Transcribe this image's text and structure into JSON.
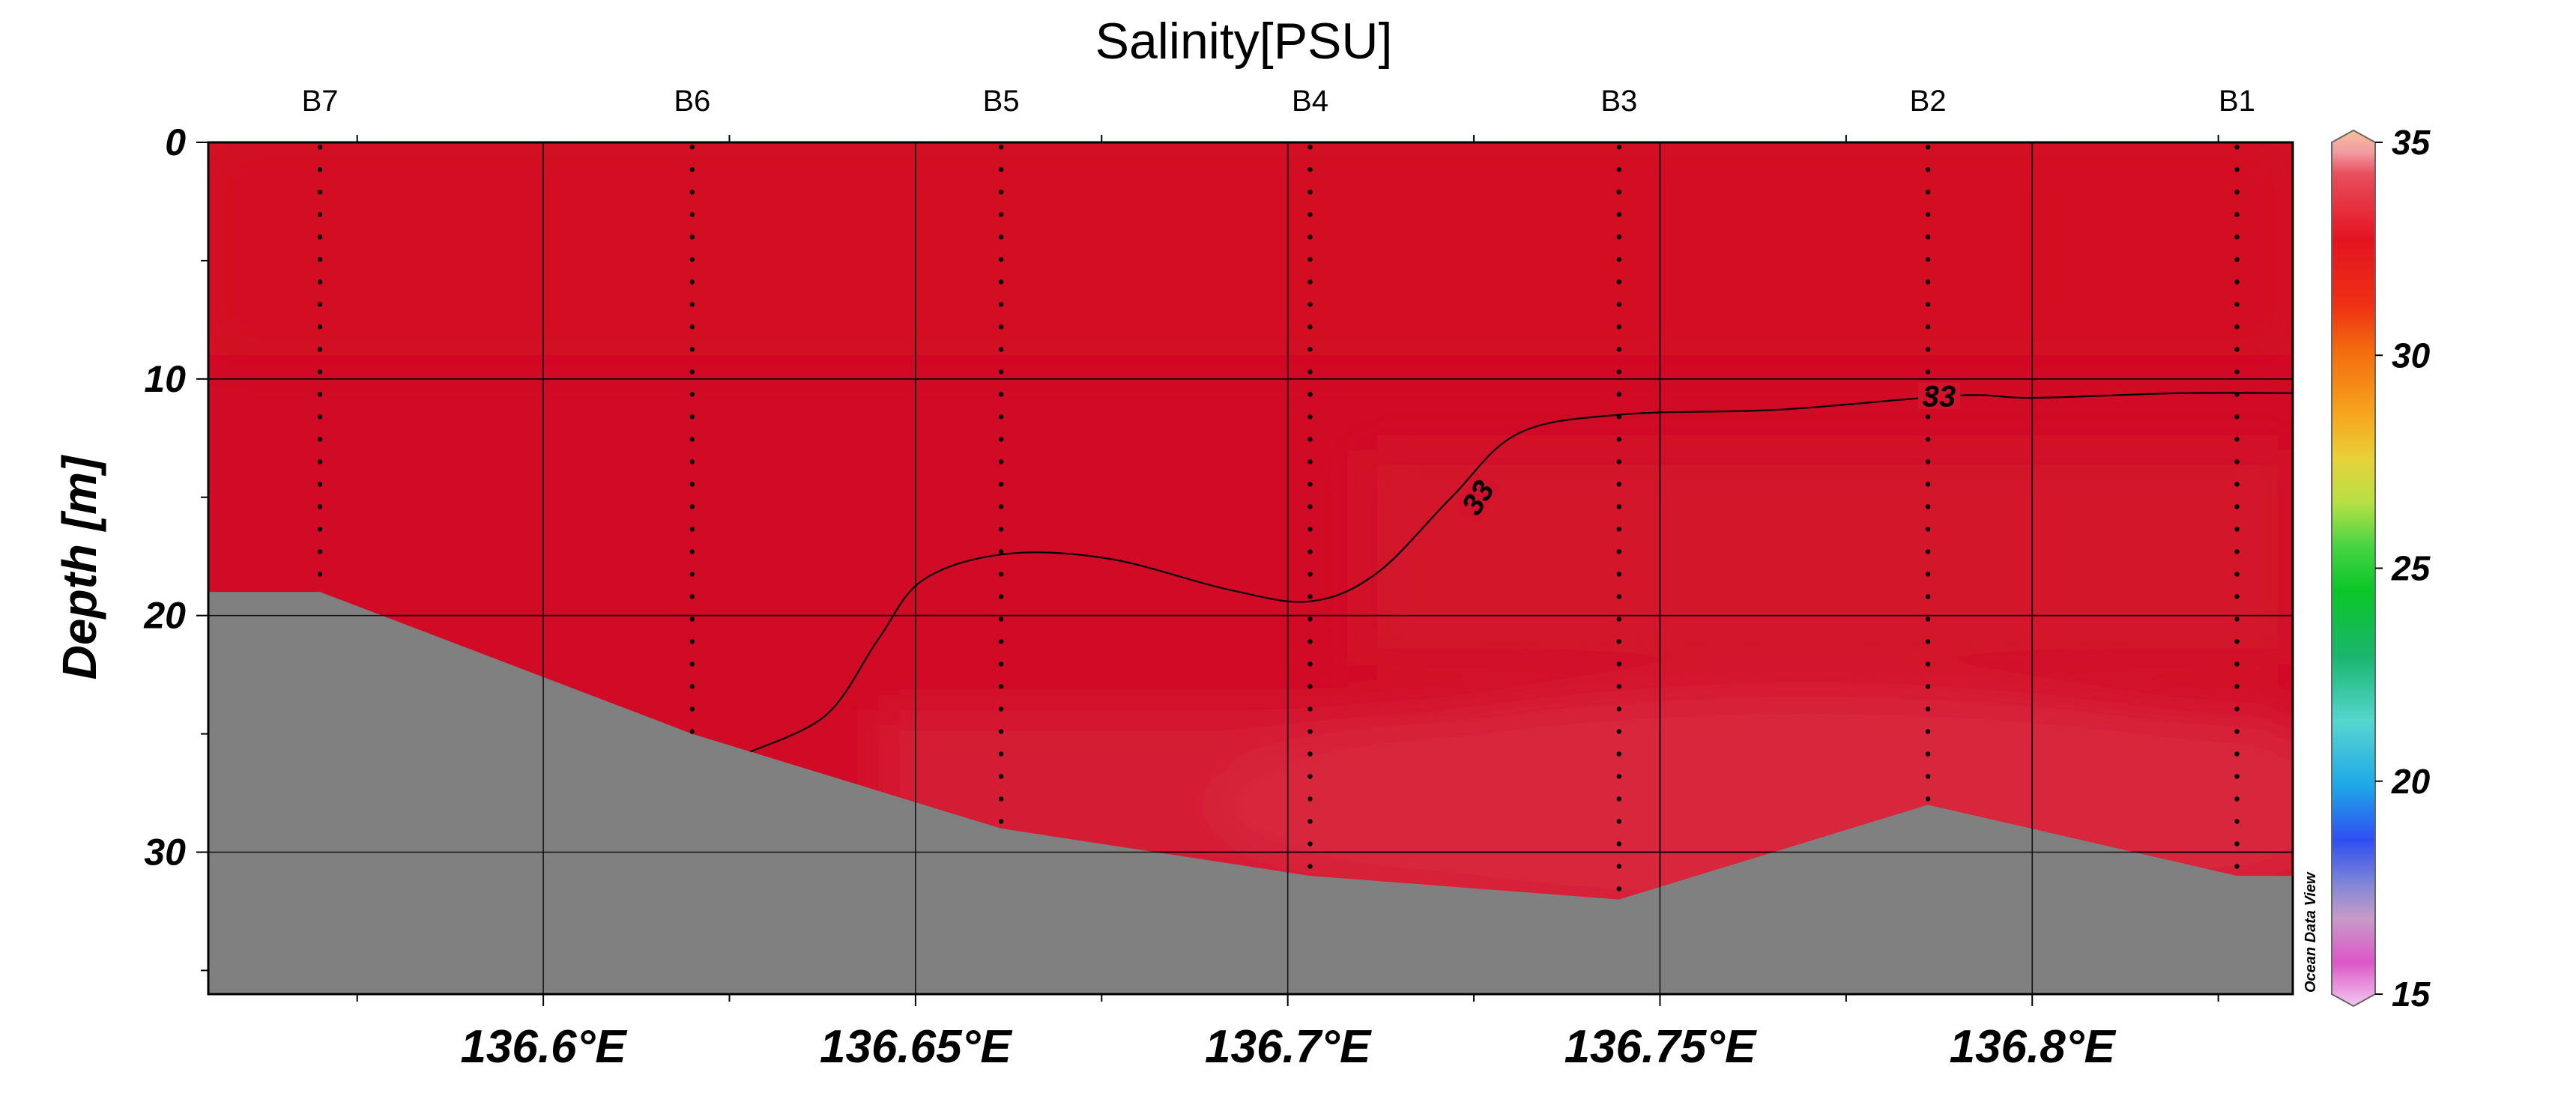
{
  "chart_data": {
    "type": "section-contour",
    "title": "Salinity[PSU]",
    "xlabel": "",
    "ylabel": "Depth [m]",
    "xlim": [
      136.555,
      136.835
    ],
    "ylim": [
      36,
      0
    ],
    "x_ticks": [
      {
        "value": 136.6,
        "label": "136.6°E"
      },
      {
        "value": 136.65,
        "label": "136.65°E"
      },
      {
        "value": 136.7,
        "label": "136.7°E"
      },
      {
        "value": 136.75,
        "label": "136.75°E"
      },
      {
        "value": 136.8,
        "label": "136.8°E"
      }
    ],
    "x_minor_ticks": [
      136.575,
      136.625,
      136.675,
      136.725,
      136.775,
      136.825
    ],
    "y_ticks": [
      {
        "value": 0,
        "label": "0"
      },
      {
        "value": 10,
        "label": "10"
      },
      {
        "value": 20,
        "label": "20"
      },
      {
        "value": 30,
        "label": "30"
      }
    ],
    "y_minor_ticks": [
      5,
      15,
      25,
      35
    ],
    "grid": true,
    "stations": [
      {
        "name": "B7",
        "lon": 136.57,
        "max_depth": 19
      },
      {
        "name": "B6",
        "lon": 136.62,
        "max_depth": 25
      },
      {
        "name": "B5",
        "lon": 136.6615,
        "max_depth": 29
      },
      {
        "name": "B4",
        "lon": 136.703,
        "max_depth": 31
      },
      {
        "name": "B3",
        "lon": 136.7445,
        "max_depth": 32
      },
      {
        "name": "B2",
        "lon": 136.786,
        "max_depth": 28
      },
      {
        "name": "B1",
        "lon": 136.8275,
        "max_depth": 31
      }
    ],
    "bottom_profile": [
      {
        "lon": 136.555,
        "depth": 19
      },
      {
        "lon": 136.57,
        "depth": 19
      },
      {
        "lon": 136.62,
        "depth": 25
      },
      {
        "lon": 136.6615,
        "depth": 29
      },
      {
        "lon": 136.703,
        "depth": 31
      },
      {
        "lon": 136.7445,
        "depth": 32
      },
      {
        "lon": 136.786,
        "depth": 28
      },
      {
        "lon": 136.8275,
        "depth": 31
      },
      {
        "lon": 136.835,
        "depth": 31
      }
    ],
    "contours": [
      {
        "level": 33,
        "label": "33",
        "points": [
          {
            "lon": 136.6275,
            "depth": 25.8
          },
          {
            "lon": 136.638,
            "depth": 24.2
          },
          {
            "lon": 136.645,
            "depth": 21.0
          },
          {
            "lon": 136.651,
            "depth": 18.5
          },
          {
            "lon": 136.662,
            "depth": 17.4
          },
          {
            "lon": 136.676,
            "depth": 17.6
          },
          {
            "lon": 136.692,
            "depth": 18.9
          },
          {
            "lon": 136.703,
            "depth": 19.4
          },
          {
            "lon": 136.712,
            "depth": 18.2
          },
          {
            "lon": 136.722,
            "depth": 15.0
          },
          {
            "lon": 136.731,
            "depth": 12.3
          },
          {
            "lon": 136.745,
            "depth": 11.5
          },
          {
            "lon": 136.766,
            "depth": 11.3
          },
          {
            "lon": 136.79,
            "depth": 10.7
          },
          {
            "lon": 136.8,
            "depth": 10.8
          },
          {
            "lon": 136.82,
            "depth": 10.6
          },
          {
            "lon": 136.835,
            "depth": 10.6
          }
        ],
        "label_positions": [
          {
            "lon": 136.7255,
            "depth": 15.2,
            "angle": -58
          },
          {
            "lon": 136.7875,
            "depth": 10.9,
            "angle": 0
          }
        ]
      }
    ],
    "colorbar": {
      "min": 15,
      "max": 35,
      "ticks": [
        35,
        30,
        25,
        20,
        15
      ],
      "stops": [
        {
          "value": 35.0,
          "color": "#f9c29a"
        },
        {
          "value": 34.5,
          "color": "#f19aa2"
        },
        {
          "value": 34.0,
          "color": "#e84e5c"
        },
        {
          "value": 32.5,
          "color": "#e4141f"
        },
        {
          "value": 31.0,
          "color": "#ee3015"
        },
        {
          "value": 30.0,
          "color": "#f46a0e"
        },
        {
          "value": 28.5,
          "color": "#f7a61d"
        },
        {
          "value": 27.5,
          "color": "#e8d13a"
        },
        {
          "value": 26.5,
          "color": "#b7e045"
        },
        {
          "value": 25.5,
          "color": "#48d444"
        },
        {
          "value": 24.5,
          "color": "#0bc627"
        },
        {
          "value": 23.0,
          "color": "#19b66d"
        },
        {
          "value": 21.5,
          "color": "#56d6d0"
        },
        {
          "value": 20.0,
          "color": "#1ea6e8"
        },
        {
          "value": 18.8,
          "color": "#2f4ef2"
        },
        {
          "value": 17.8,
          "color": "#7f86d8"
        },
        {
          "value": 17.0,
          "color": "#c79bc8"
        },
        {
          "value": 16.0,
          "color": "#dc57c8"
        },
        {
          "value": 15.0,
          "color": "#f1c8ef"
        }
      ]
    },
    "field_colors": {
      "surface": "#d30822",
      "upper": "#d10b26",
      "mid": "#d3132c",
      "deep": "#d51d34",
      "deepest": "#d8283d",
      "bottom_fill": "#808080"
    },
    "watermark": "Ocean Data View"
  }
}
